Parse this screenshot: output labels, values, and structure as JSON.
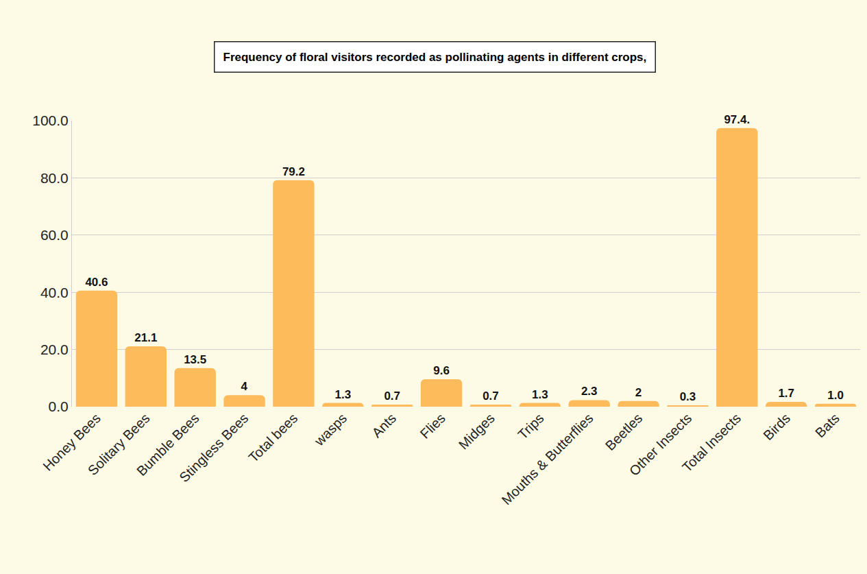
{
  "chart_data": {
    "type": "bar",
    "title": "Frequency of floral visitors recorded as pollinating agents in different crops,",
    "categories": [
      "Honey Bees",
      "Solitary Bees",
      "Bumble Bees",
      "Stingless Bees",
      "Total bees",
      "wasps",
      "Ants",
      "Flies",
      "Midges",
      "Trips",
      "Mouths & Butterflies",
      "Beetles",
      "Other Insects",
      "Total Insects",
      "Birds",
      "Bats"
    ],
    "values": [
      40.6,
      21.1,
      13.5,
      4,
      79.2,
      1.3,
      0.7,
      9.6,
      0.7,
      1.3,
      2.3,
      2,
      0.3,
      97.4,
      1.7,
      1.0
    ],
    "value_labels": [
      "40.6",
      "21.1",
      "13.5",
      "4",
      "79.2",
      "1.3",
      "0.7",
      "9.6",
      "0.7",
      "1.3",
      "2.3",
      "2",
      "0.3",
      "97.4.",
      "1.7",
      "1.0"
    ],
    "data_labels": true,
    "color": "#fdbb5c",
    "ylim": [
      0,
      100
    ],
    "yticks": [
      {
        "value": 0,
        "label": "0.0"
      },
      {
        "value": 20,
        "label": "20.0"
      },
      {
        "value": 40,
        "label": "40.0"
      },
      {
        "value": 60,
        "label": "60.0"
      },
      {
        "value": 80,
        "label": "80.0"
      },
      {
        "value": 100,
        "label": "100.0"
      }
    ],
    "grid": true
  }
}
